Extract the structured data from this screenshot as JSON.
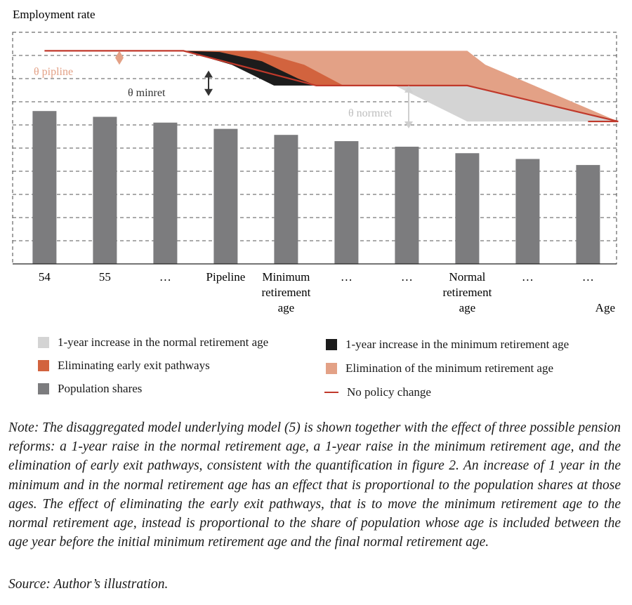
{
  "chart_data": {
    "type": "bar",
    "ylabel": "Employment rate",
    "xlabel": "Age",
    "categories": [
      "54",
      "55",
      "…",
      "Pipeline",
      "Minimum retirement age",
      "…",
      "…",
      "Normal retirement age",
      "…",
      "…"
    ],
    "series": [
      {
        "name": "Population shares",
        "values": [
          0.66,
          0.635,
          0.61,
          0.583,
          0.557,
          0.53,
          0.506,
          0.478,
          0.453,
          0.427
        ]
      }
    ],
    "ylim": [
      0,
      1
    ],
    "grid": true,
    "employment_rate_profile": {
      "x_positions": [
        0,
        2.3,
        4.5,
        7.0,
        9.5
      ],
      "no_policy_change": [
        0.92,
        0.92,
        0.77,
        0.77,
        0.615
      ],
      "one_year_increase_minimum_retirement_age": [
        0.92,
        0.92,
        0.77,
        0.77,
        0.615
      ],
      "elimination_of_minimum_retirement_age": [
        0.92,
        0.92,
        0.92,
        0.92,
        0.615
      ],
      "one_year_increase_normal_retirement_age": [
        0.77,
        0.77,
        0.615
      ]
    },
    "annotations": [
      "θ pipline",
      "θ minret",
      "θ normret"
    ],
    "legend": [
      {
        "label": "1-year increase in the normal retirement age",
        "color": "#d4d4d4"
      },
      {
        "label": "1-year increase in the minimum retirement age",
        "color": "#1c1c1c"
      },
      {
        "label": "Eliminating early exit pathways",
        "color": "#d2633e"
      },
      {
        "label": "Elimination of the minimum retirement age",
        "color": "#e3a186"
      },
      {
        "label": "Population shares",
        "color": "#7c7c7e"
      },
      {
        "label": "No policy change",
        "color": "#c0392b"
      }
    ]
  },
  "tick_labels": [
    [
      "54"
    ],
    [
      "55"
    ],
    [
      "…"
    ],
    [
      "Pipeline"
    ],
    [
      "Minimum",
      "retirement",
      "age"
    ],
    [
      "…"
    ],
    [
      "…"
    ],
    [
      "Normal",
      "retirement",
      "age"
    ],
    [
      "…"
    ],
    [
      "…"
    ]
  ],
  "note": "Note: The disaggregated model underlying model (5) is shown together with the effect of three possible pension reforms: a 1-year raise in the normal retirement age, a 1-year raise in the minimum retirement age, and the elimination of early exit pathways, consistent with the quantification in figure 2. An increase of 1 year in the minimum and in the normal retirement age has an effect that is proportional to the population shares at those ages. The effect of eliminating the early exit pathways, that is to move the minimum retirement age to the normal retirement age, instead is proportional to the share of population whose age is included between the age year before the initial minimum retirement age and the final normal retirement age.",
  "source": "Source: Author’s illustration."
}
